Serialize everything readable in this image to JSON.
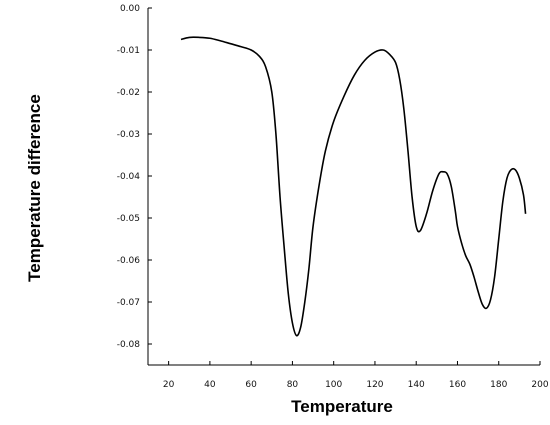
{
  "chart_data": {
    "type": "line",
    "title": "",
    "xlabel": "Temperature",
    "ylabel": "Temperature difference",
    "xlim": [
      10,
      200
    ],
    "ylim": [
      -0.085,
      0.0
    ],
    "x_ticks": [
      20,
      40,
      60,
      80,
      100,
      120,
      140,
      160,
      180,
      200
    ],
    "x_tick_labels": [
      "20",
      "40",
      "60",
      "80",
      "100",
      "120",
      "140",
      "160",
      "180",
      "200"
    ],
    "y_ticks": [
      0.0,
      -0.01,
      -0.02,
      -0.03,
      -0.04,
      -0.05,
      -0.06,
      -0.07,
      -0.08
    ],
    "y_tick_labels": [
      "0.00",
      "-0.01",
      "-0.02",
      "-0.03",
      "-0.04",
      "-0.05",
      "-0.06",
      "-0.07",
      "-0.08"
    ],
    "grid": false,
    "series": [
      {
        "color": "#000000",
        "x": [
          26,
          30,
          35,
          40,
          45,
          50,
          55,
          60,
          64,
          67,
          70,
          72,
          74,
          76,
          78,
          80,
          82,
          84,
          86,
          88,
          90,
          93,
          96,
          100,
          105,
          110,
          115,
          120,
          124,
          127,
          130,
          132,
          134,
          136,
          138,
          140,
          142,
          145,
          148,
          151,
          153,
          155,
          157,
          159,
          160,
          162,
          164,
          166,
          168,
          170,
          172,
          174,
          176,
          178,
          180,
          182,
          184,
          186,
          188,
          190,
          192,
          193
        ],
        "y": [
          -0.0075,
          -0.007,
          -0.007,
          -0.0072,
          -0.0078,
          -0.0085,
          -0.0092,
          -0.01,
          -0.0115,
          -0.014,
          -0.02,
          -0.03,
          -0.045,
          -0.057,
          -0.068,
          -0.075,
          -0.078,
          -0.076,
          -0.07,
          -0.062,
          -0.052,
          -0.042,
          -0.034,
          -0.027,
          -0.021,
          -0.016,
          -0.0125,
          -0.0105,
          -0.01,
          -0.011,
          -0.013,
          -0.017,
          -0.024,
          -0.034,
          -0.045,
          -0.052,
          -0.053,
          -0.049,
          -0.0435,
          -0.0395,
          -0.039,
          -0.0395,
          -0.0425,
          -0.0485,
          -0.052,
          -0.056,
          -0.059,
          -0.061,
          -0.064,
          -0.0675,
          -0.0705,
          -0.0715,
          -0.0695,
          -0.064,
          -0.055,
          -0.046,
          -0.0405,
          -0.0385,
          -0.0385,
          -0.0405,
          -0.0445,
          -0.049
        ]
      }
    ]
  }
}
